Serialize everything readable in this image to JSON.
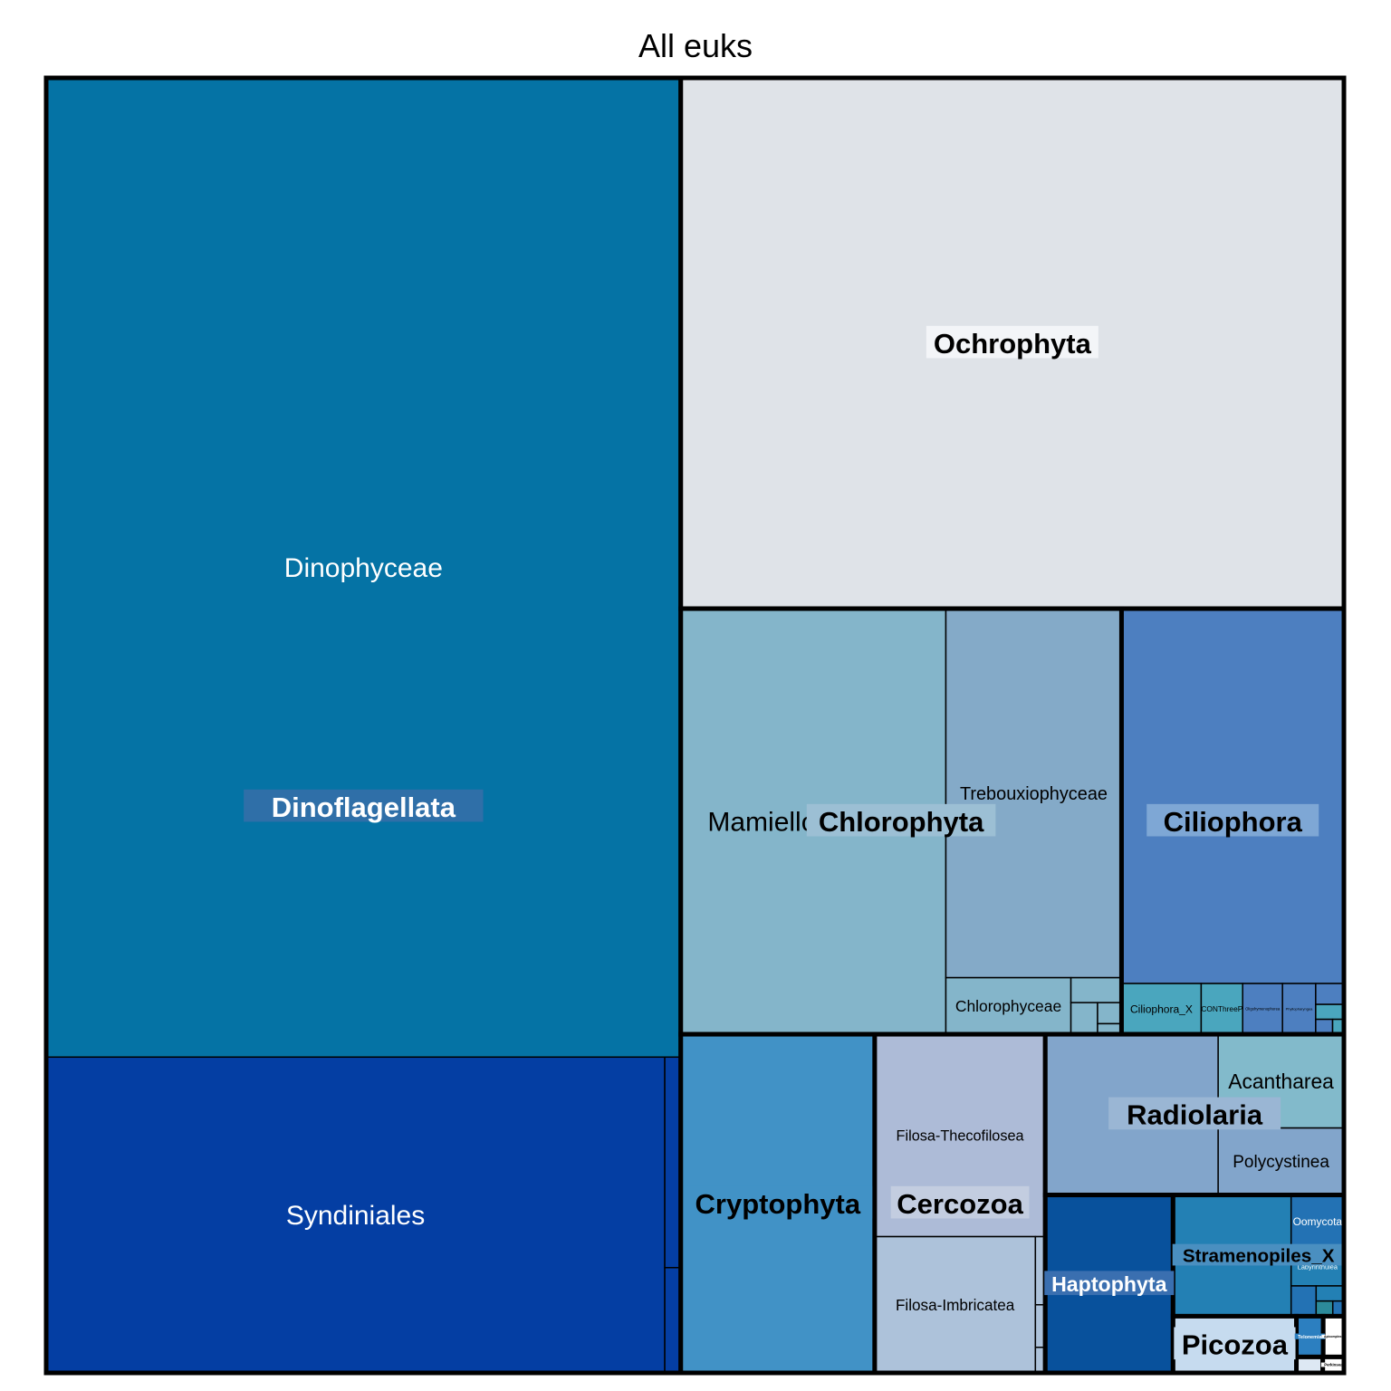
{
  "chart_data": {
    "type": "treemap",
    "title": "All euks",
    "groups": [
      {
        "name": "Dinoflagellata",
        "label_color": "#ffffff",
        "label_bg": "#2f6fa8",
        "children": [
          {
            "name": "Dinophyceae",
            "color": "#0573a5",
            "value": 738
          },
          {
            "name": "Syndiniales",
            "color": "#043ea3",
            "value": 232
          },
          {
            "name": "",
            "color": "#043ea3",
            "value": 4
          },
          {
            "name": "",
            "color": "#043ea3",
            "value": 2
          }
        ]
      },
      {
        "name": "Ochrophyta",
        "label_color": "#000000",
        "label_bg": "#f3f5f8",
        "children": [
          {
            "name": "",
            "color": "#dfe3e8",
            "value": 418
          }
        ]
      },
      {
        "name": "Chlorophyta",
        "label_color": "#000000",
        "label_bg": "#9cbfd4",
        "children": [
          {
            "name": "Mamiellophyceae",
            "color": "#84b5ca",
            "value": 134
          },
          {
            "name": "Trebouxiophyceae",
            "color": "#84aac8",
            "value": 77
          },
          {
            "name": "Chlorophyceae",
            "color": "#84b5ca",
            "value": 8.4
          },
          {
            "name": "",
            "color": "#84b5ca",
            "value": 1.5
          },
          {
            "name": "",
            "color": "#84b5ca",
            "value": 1
          },
          {
            "name": "",
            "color": "#84b5ca",
            "value": 0.6
          },
          {
            "name": "",
            "color": "#84b5ca",
            "value": 0.3
          }
        ]
      },
      {
        "name": "Ciliophora",
        "label_color": "#000000",
        "label_bg": "#7ea7d5",
        "children": [
          {
            "name": "",
            "color": "#4d7fc0",
            "value": 99
          },
          {
            "name": "Ciliophora_X",
            "color": "#4aa6be",
            "value": 4.8
          },
          {
            "name": "CONThreeP",
            "color": "#4aa6be",
            "value": 2.5
          },
          {
            "name": "Oligohymenophorea",
            "color": "#4d7fc0",
            "value": 2.4
          },
          {
            "name": "Phyllopharyngea",
            "color": "#4d7fc0",
            "value": 2
          },
          {
            "name": "",
            "color": "#4aa6be",
            "value": 0.5
          },
          {
            "name": "",
            "color": "#4d7fc0",
            "value": 0.7
          },
          {
            "name": "",
            "color": "#4d7fc0",
            "value": 0.3
          },
          {
            "name": "",
            "color": "#4aa6be",
            "value": 0.2
          }
        ]
      },
      {
        "name": "Cryptophyta",
        "label_color": "#000000",
        "label_bg": "#4192c6",
        "children": [
          {
            "name": "",
            "color": "#4192c6",
            "value": 78
          }
        ]
      },
      {
        "name": "Cercozoa",
        "label_color": "#000000",
        "label_bg": "#c3cde0",
        "children": [
          {
            "name": "Filosa-Thecofilosea",
            "color": "#adbbd7",
            "value": 41
          },
          {
            "name": "Filosa-Imbricatea",
            "color": "#adc2da",
            "value": 26
          },
          {
            "name": "",
            "color": "#adc2da",
            "value": 0.8
          },
          {
            "name": "",
            "color": "#adc2da",
            "value": 0.5
          },
          {
            "name": "",
            "color": "#adc2da",
            "value": 0.3
          }
        ]
      },
      {
        "name": "Radiolaria",
        "label_color": "#000000",
        "label_bg": "#9ab6d4",
        "children": [
          {
            "name": "",
            "color": "#82a5cb",
            "value": 33
          },
          {
            "name": "Acantharea",
            "color": "#82bacb",
            "value": 14
          },
          {
            "name": "Polycystinea",
            "color": "#82a5cb",
            "value": 10
          }
        ]
      },
      {
        "name": "Haptophyta",
        "label_color": "#ffffff",
        "label_bg": "#3a6fb0",
        "children": [
          {
            "name": "",
            "color": "#08519c",
            "value": 27
          }
        ]
      },
      {
        "name": "Stramenopiles_X",
        "label_color": "#000000",
        "label_bg": "#4a8fc0",
        "children": [
          {
            "name": "",
            "color": "#2380b4",
            "value": 17
          },
          {
            "name": "Oomycota",
            "color": "#2372b4",
            "value": 3.3
          },
          {
            "name": "Labyrinthulea",
            "color": "#2380b4",
            "value": 2.4
          },
          {
            "name": "",
            "color": "#2372b4",
            "value": 0.9
          },
          {
            "name": "",
            "color": "#2380b4",
            "value": 0.5
          },
          {
            "name": "",
            "color": "#2c8a9a",
            "value": 0.3
          },
          {
            "name": "",
            "color": "#2372b4",
            "value": 0.2
          }
        ]
      },
      {
        "name": "Picozoa",
        "label_color": "#000000",
        "label_bg": "#c6dbef",
        "children": [
          {
            "name": "",
            "color": "#c6dbef",
            "value": 8.3
          }
        ]
      },
      {
        "name": "Apicomplexa",
        "label_color": "#000000",
        "label_bg": "#ffffff",
        "children": [
          {
            "name": "",
            "color": "#ffffff",
            "value": 1
          }
        ]
      },
      {
        "name": "Telonemia",
        "label_color": "#ffffff",
        "label_bg": "#2c7fc0",
        "children": [
          {
            "name": "",
            "color": "#2c7fc0",
            "value": 1.3
          }
        ]
      },
      {
        "name": "Perkinsea",
        "label_color": "#000000",
        "label_bg": "#ffffff",
        "children": [
          {
            "name": "",
            "color": "#ffffff",
            "value": 0.4
          }
        ]
      },
      {
        "name": "",
        "label_color": "#000000",
        "label_bg": "#ffffff",
        "children": [
          {
            "name": "",
            "color": "#dde8f3",
            "value": 0.5
          }
        ]
      }
    ]
  }
}
